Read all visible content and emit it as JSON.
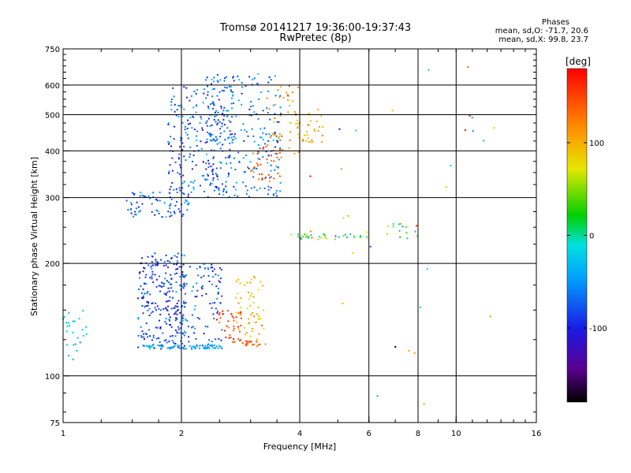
{
  "header": {
    "title": "Tromsø 20141217 19:36:00-19:37:43",
    "subtitle": "RwPretec (8p)",
    "stats_title": "Phases",
    "stats_o": "mean, sd,O: -71.7, 20.6",
    "stats_x": "mean, sd,X:  99.8, 23.7"
  },
  "colorbar": {
    "unit_label": "[deg]",
    "tick_labels": [
      "100",
      "0",
      "-100"
    ],
    "tick_values": [
      100,
      0,
      -100
    ],
    "range": [
      -180,
      180
    ]
  },
  "chart_data": {
    "type": "scatter",
    "xlabel": "Frequency [MHz]",
    "ylabel": "Stationary phase Virtual Height [km]",
    "xscale": "log",
    "yscale": "log",
    "xlim": [
      1,
      16
    ],
    "ylim": [
      75,
      750
    ],
    "x_ticks": [
      1,
      2,
      4,
      6,
      8,
      10,
      16
    ],
    "x_tick_labels": [
      "1",
      "2",
      "4",
      "6",
      "8",
      "10",
      "16"
    ],
    "x_gridlines": [
      2,
      4,
      6,
      8,
      10
    ],
    "y_ticks": [
      75,
      100,
      200,
      300,
      400,
      500,
      600,
      750
    ],
    "y_tick_labels": [
      "75",
      "100",
      "200",
      "300",
      "400",
      "500",
      "600",
      "750"
    ],
    "y_gridlines": [
      100,
      200,
      300,
      400,
      500,
      600
    ],
    "grid": true,
    "color_encodes": "phase [deg]",
    "clusters": [
      {
        "fmin": 1.55,
        "fmax": 2.05,
        "hmin": 118,
        "hmax": 215,
        "phase_mean": -85,
        "phase_sd": 22,
        "count": 260
      },
      {
        "fmin": 2.0,
        "fmax": 2.55,
        "hmin": 118,
        "hmax": 200,
        "phase_mean": -75,
        "phase_sd": 22,
        "count": 110
      },
      {
        "fmin": 1.6,
        "fmax": 2.55,
        "hmin": 118,
        "hmax": 121,
        "phase_mean": -40,
        "phase_sd": 10,
        "count": 55
      },
      {
        "fmin": 2.45,
        "fmax": 2.85,
        "hmin": 122,
        "hmax": 150,
        "phase_mean": 150,
        "phase_sd": 15,
        "count": 40
      },
      {
        "fmin": 2.75,
        "fmax": 3.25,
        "hmin": 125,
        "hmax": 185,
        "phase_mean": 95,
        "phase_sd": 18,
        "count": 55
      },
      {
        "fmin": 2.85,
        "fmax": 3.3,
        "hmin": 120,
        "hmax": 124,
        "phase_mean": 140,
        "phase_sd": 12,
        "count": 20
      },
      {
        "fmin": 1.45,
        "fmax": 2.1,
        "hmin": 265,
        "hmax": 310,
        "phase_mean": -75,
        "phase_sd": 22,
        "count": 70
      },
      {
        "fmin": 1.85,
        "fmax": 2.7,
        "hmin": 300,
        "hmax": 600,
        "phase_mean": -75,
        "phase_sd": 25,
        "count": 230
      },
      {
        "fmin": 2.3,
        "fmax": 3.6,
        "hmin": 300,
        "hmax": 650,
        "phase_mean": -65,
        "phase_sd": 25,
        "count": 240
      },
      {
        "fmin": 3.0,
        "fmax": 3.6,
        "hmin": 330,
        "hmax": 420,
        "phase_mean": 145,
        "phase_sd": 12,
        "count": 35
      },
      {
        "fmin": 3.3,
        "fmax": 4.0,
        "hmin": 380,
        "hmax": 600,
        "phase_mean": 125,
        "phase_sd": 18,
        "count": 40
      },
      {
        "fmin": 3.9,
        "fmax": 4.6,
        "hmin": 420,
        "hmax": 520,
        "phase_mean": 95,
        "phase_sd": 15,
        "count": 35
      },
      {
        "fmin": 3.8,
        "fmax": 6.0,
        "hmin": 232,
        "hmax": 240,
        "phase_mean": 20,
        "phase_sd": 60,
        "count": 35
      },
      {
        "fmin": 6.5,
        "fmax": 8.5,
        "hmin": 232,
        "hmax": 256,
        "phase_mean": 20,
        "phase_sd": 60,
        "count": 18
      },
      {
        "fmin": 1.0,
        "fmax": 1.15,
        "hmin": 110,
        "hmax": 150,
        "phase_mean": -30,
        "phase_sd": 15,
        "count": 25
      },
      {
        "fmin": 4.0,
        "fmax": 12.5,
        "hmin": 80,
        "hmax": 680,
        "phase_mean": 40,
        "phase_sd": 90,
        "count": 30
      }
    ]
  }
}
